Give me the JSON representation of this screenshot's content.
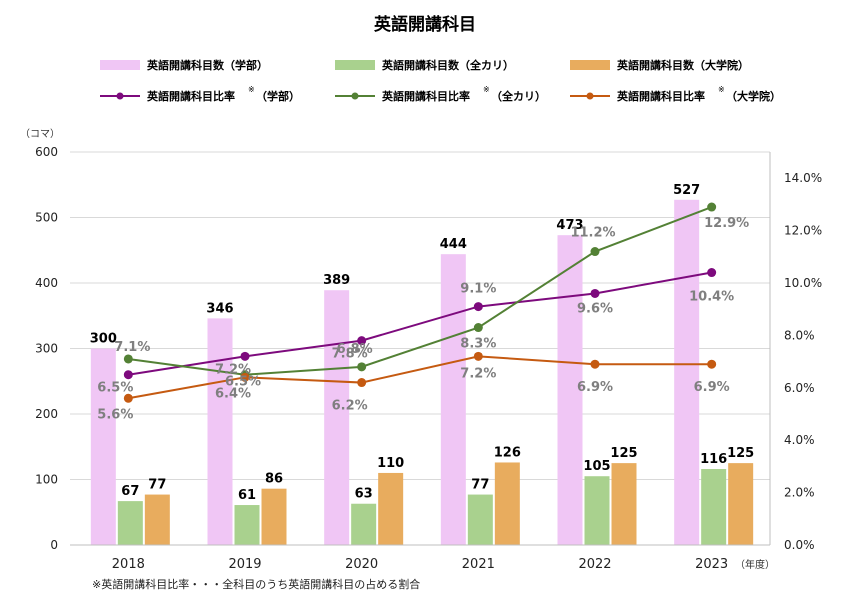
{
  "chart_data": {
    "type": "bar",
    "title": "英語開講科目",
    "categories": [
      "2018",
      "2019",
      "2020",
      "2021",
      "2022",
      "2023"
    ],
    "x_unit": "（年度）",
    "y_unit": "（コマ）",
    "ylim": [
      0,
      600
    ],
    "yticks": [
      "0",
      "100",
      "200",
      "300",
      "400",
      "500",
      "600"
    ],
    "y2lim": [
      0,
      0.15
    ],
    "y2ticks": [
      "0.0%",
      "2.0%",
      "4.0%",
      "6.0%",
      "8.0%",
      "10.0%",
      "12.0%",
      "14.0%"
    ],
    "grid": "horizontal",
    "legend_position": "top",
    "bar_series": [
      {
        "name": "英語開講科目数（学部）",
        "color": "#f0c6f5",
        "values": [
          300,
          346,
          389,
          444,
          473,
          527
        ]
      },
      {
        "name": "英語開講科目数（全カリ）",
        "color": "#a9d18e",
        "values": [
          67,
          61,
          63,
          77,
          105,
          116
        ]
      },
      {
        "name": "英語開講科目数（大学院）",
        "color": "#e8ac5e",
        "values": [
          77,
          86,
          110,
          126,
          125,
          125
        ]
      }
    ],
    "line_series": [
      {
        "name": "英語開講科目比率",
        "name_suffix": "（学部）",
        "color": "#7d0a7d",
        "values": [
          0.065,
          0.072,
          0.078,
          0.091,
          0.096,
          0.104
        ],
        "labels": [
          "6.5%",
          "7.2%",
          "7.8%",
          "9.1%",
          "9.6%",
          "10.4%"
        ]
      },
      {
        "name": "英語開講科目比率",
        "name_suffix": "（全カリ）",
        "color": "#538135",
        "values": [
          0.071,
          0.065,
          0.068,
          0.083,
          0.112,
          0.129
        ],
        "labels": [
          "7.1%",
          "6.5%",
          "6.8%",
          "8.3%",
          "11.2%",
          "12.9%"
        ]
      },
      {
        "name": "英語開講科目比率",
        "name_suffix": "（大学院）",
        "color": "#c55a11",
        "values": [
          0.056,
          0.064,
          0.062,
          0.072,
          0.069,
          0.069
        ],
        "labels": [
          "5.6%",
          "6.4%",
          "6.2%",
          "7.2%",
          "6.9%",
          "6.9%"
        ]
      }
    ],
    "legend_mark": "※",
    "footnote": "※英語開講科目比率・・・全科目のうち英語開講科目の占める割合"
  }
}
